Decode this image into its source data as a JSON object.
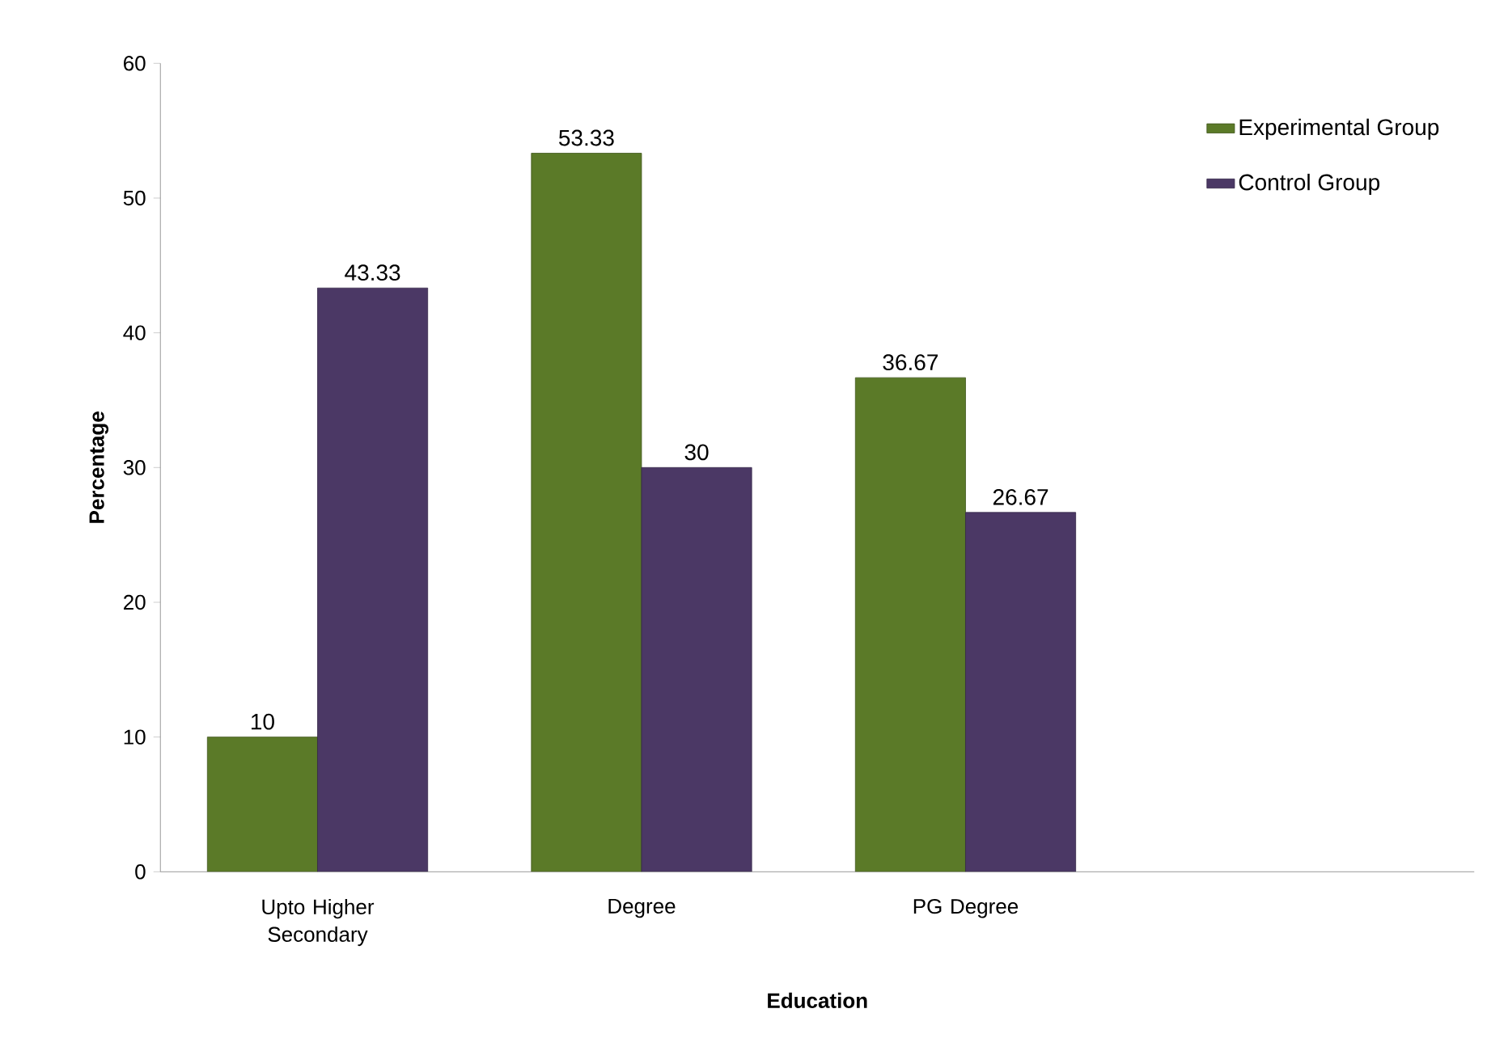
{
  "chart_data": {
    "type": "bar",
    "xlabel": "Education",
    "ylabel": "Percentage",
    "categories": [
      "Upto Higher Secondary",
      "Degree",
      "PG Degree"
    ],
    "series": [
      {
        "name": "Experimental Group",
        "color": "#5b7a28",
        "values": [
          10,
          53.33,
          36.67
        ]
      },
      {
        "name": "Control Group",
        "color": "#4b3865",
        "values": [
          43.33,
          30,
          26.67
        ]
      }
    ],
    "ylim": [
      0,
      60
    ],
    "yticks": [
      0,
      10,
      20,
      30,
      40,
      50,
      60
    ],
    "data_labels": true,
    "legend": "top right",
    "grid": false
  }
}
